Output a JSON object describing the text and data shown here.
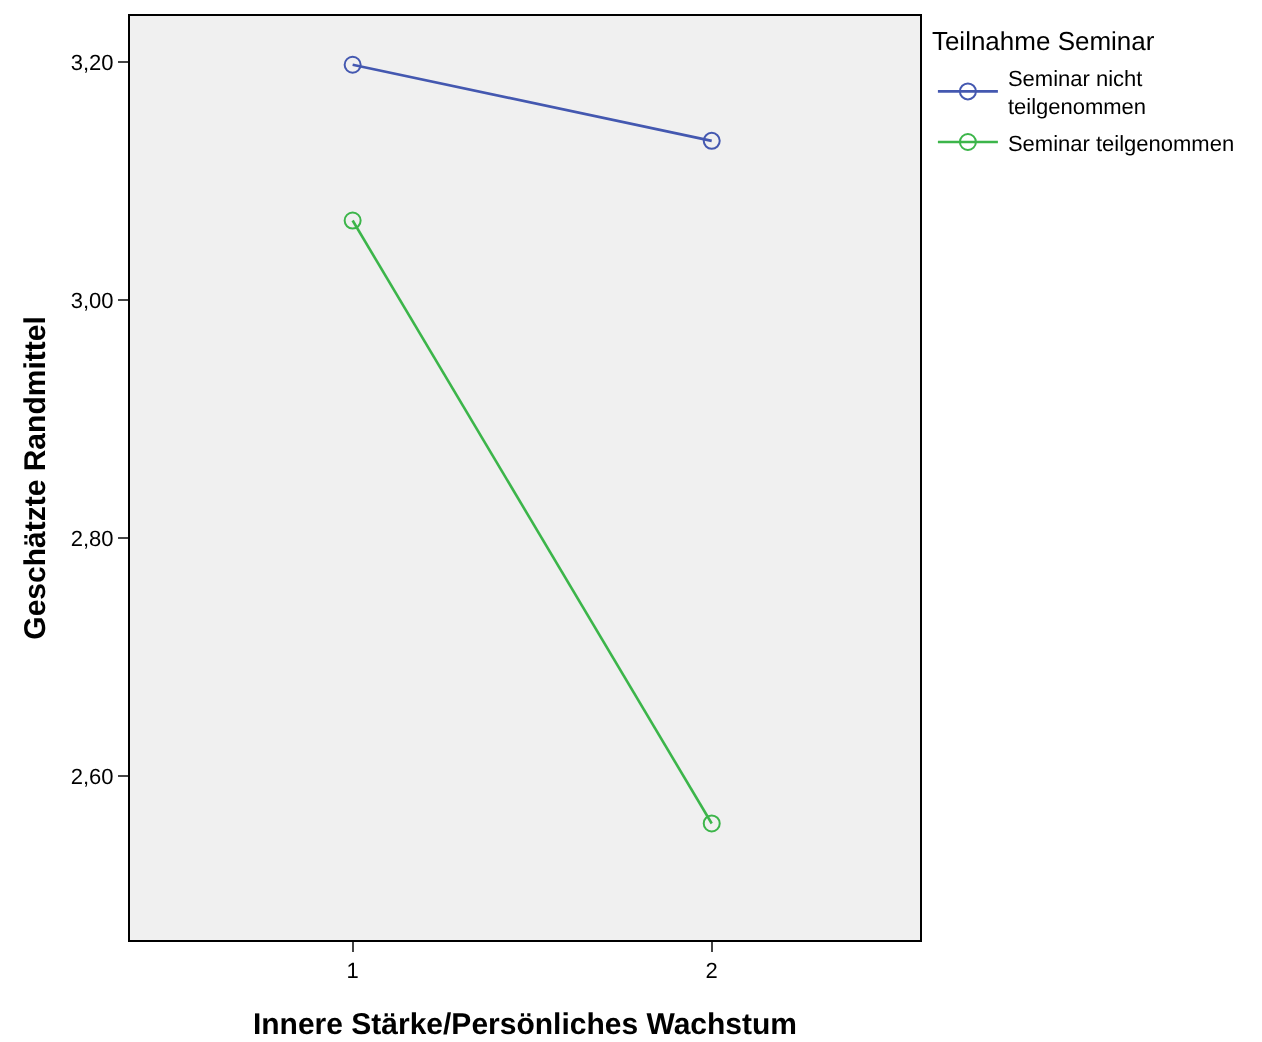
{
  "chart_data": {
    "type": "line",
    "xlabel": "Innere Stärke/Persönliches Wachstum",
    "ylabel": "Geschätzte Randmittel",
    "legend_title": "Teilnahme Seminar",
    "categories": [
      "1",
      "2"
    ],
    "series": [
      {
        "name": "Seminar nicht teilgenommen",
        "color": "#4458b0",
        "values": [
          3.198,
          3.134
        ]
      },
      {
        "name": "Seminar teilgenommen",
        "color": "#3cb54a",
        "values": [
          3.067,
          2.56
        ]
      }
    ],
    "ylim": [
      2.462,
      3.239
    ],
    "yticks": [
      {
        "value": 2.6,
        "label": "2,60"
      },
      {
        "value": 2.8,
        "label": "2,80"
      },
      {
        "value": 3.0,
        "label": "3,00"
      },
      {
        "value": 3.2,
        "label": "3,20"
      }
    ],
    "grid": false,
    "legend": "right",
    "marker": "circle",
    "line_style": "solid"
  }
}
